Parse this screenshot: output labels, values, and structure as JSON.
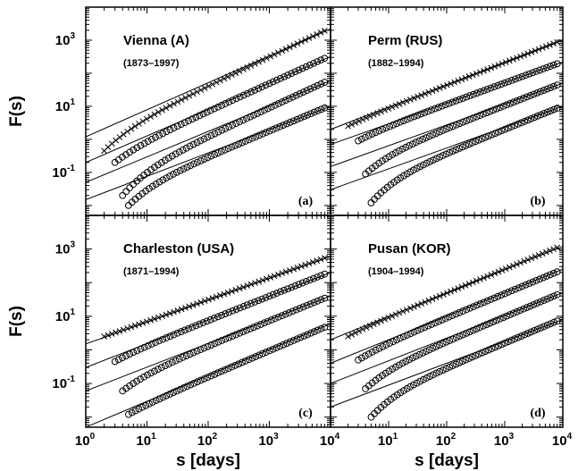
{
  "chart_data": {
    "type": "scatter",
    "xlabel": "s [days]",
    "ylabel": "F(s)",
    "xscale": "log",
    "yscale": "log",
    "xlim": [
      1,
      10000
    ],
    "ylim": [
      0.005,
      10000
    ],
    "xticks": [
      {
        "value": 1,
        "base": "10",
        "exp": "0"
      },
      {
        "value": 10,
        "base": "10",
        "exp": "1"
      },
      {
        "value": 100,
        "base": "10",
        "exp": "2"
      },
      {
        "value": 1000,
        "base": "10",
        "exp": "3"
      },
      {
        "value": 10000,
        "base": "10",
        "exp": "4"
      }
    ],
    "yticks": [
      {
        "value": 0.1,
        "base": "10",
        "exp": "-1"
      },
      {
        "value": 10,
        "base": "10",
        "exp": "1"
      },
      {
        "value": 1000,
        "base": "10",
        "exp": "3"
      }
    ],
    "panels": [
      {
        "title": "Vienna (A)",
        "period": "(1873–1997)",
        "label": "(a)",
        "series": [
          {
            "marker": "cross",
            "s_min": 2,
            "F_start": 0.45,
            "F_end": 2200,
            "fit_lo": 1.2,
            "fit_hi": 2200
          },
          {
            "marker": "circle",
            "s_min": 3,
            "F_start": 0.2,
            "F_end": 320,
            "fit_lo": 0.2,
            "fit_hi": 320
          },
          {
            "marker": "circle",
            "s_min": 4,
            "F_start": 0.02,
            "F_end": 60,
            "fit_lo": 0.05,
            "fit_hi": 60
          },
          {
            "marker": "circle",
            "s_min": 5,
            "F_start": 0.01,
            "F_end": 10,
            "fit_lo": 0.015,
            "fit_hi": 10
          }
        ]
      },
      {
        "title": "Perm (RUS)",
        "period": "(1882–1994)",
        "label": "(b)",
        "series": [
          {
            "marker": "cross",
            "s_min": 2,
            "F_start": 2.5,
            "F_end": 900,
            "fit_lo": 2,
            "fit_hi": 1000
          },
          {
            "marker": "circle",
            "s_min": 3,
            "F_start": 0.9,
            "F_end": 200,
            "fit_lo": 0.7,
            "fit_hi": 220
          },
          {
            "marker": "circle",
            "s_min": 4,
            "F_start": 0.09,
            "F_end": 45,
            "fit_lo": 0.15,
            "fit_hi": 50
          },
          {
            "marker": "circle",
            "s_min": 5,
            "F_start": 0.012,
            "F_end": 9,
            "fit_lo": 0.03,
            "fit_hi": 10
          }
        ]
      },
      {
        "title": "Charleston (USA)",
        "period": "(1871–1994)",
        "label": "(c)",
        "series": [
          {
            "marker": "cross",
            "s_min": 2,
            "F_start": 2.5,
            "F_end": 600,
            "fit_lo": 1.5,
            "fit_hi": 600
          },
          {
            "marker": "circle",
            "s_min": 3,
            "F_start": 0.45,
            "F_end": 200,
            "fit_lo": 0.3,
            "fit_hi": 200
          },
          {
            "marker": "circle",
            "s_min": 4,
            "F_start": 0.06,
            "F_end": 35,
            "fit_lo": 0.06,
            "fit_hi": 40
          },
          {
            "marker": "circle",
            "s_min": 5,
            "F_start": 0.012,
            "F_end": 4,
            "fit_lo": 0.005,
            "fit_hi": 6
          }
        ]
      },
      {
        "title": "Pusan (KOR)",
        "period": "(1904–1994)",
        "label": "(d)",
        "series": [
          {
            "marker": "cross",
            "s_min": 2,
            "F_start": 2.5,
            "F_end": 1300,
            "fit_lo": 2,
            "fit_hi": 1200
          },
          {
            "marker": "circle",
            "s_min": 3,
            "F_start": 0.5,
            "F_end": 200,
            "fit_lo": 0.4,
            "fit_hi": 250
          },
          {
            "marker": "circle",
            "s_min": 4,
            "F_start": 0.07,
            "F_end": 45,
            "fit_lo": 0.1,
            "fit_hi": 50
          },
          {
            "marker": "circle",
            "s_min": 5,
            "F_start": 0.01,
            "F_end": 8,
            "fit_lo": 0.02,
            "fit_hi": 8
          }
        ]
      }
    ]
  }
}
